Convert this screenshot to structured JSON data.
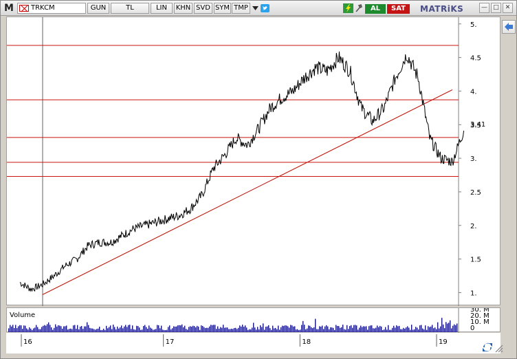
{
  "toolbar": {
    "menu_logo": "M",
    "symbol": "TRKCM",
    "buttons": [
      "GUN",
      "TL",
      "LIN",
      "KHN",
      "SVD",
      "SYM",
      "TMP"
    ],
    "al_label": "AL",
    "sat_label": "SAT",
    "brand": "MATRiKS",
    "icons": [
      "flag-icon",
      "dropdown-arrow-icon",
      "twitter-icon",
      "refresh-icon",
      "settings-icon",
      "minimize-icon",
      "maximize-icon",
      "close-icon"
    ]
  },
  "volume": {
    "label": "Volume",
    "axis_labels": [
      "30. M",
      "20. M",
      "10. M",
      "0"
    ]
  },
  "colors": {
    "price_line": "#000000",
    "support_lines": "#c8140c",
    "trend_line": "#c8140c",
    "volume_bars": "#14147a",
    "al": "#1e8a2e",
    "sat": "#c41414",
    "brand": "#4a4e86"
  },
  "chart_data": {
    "type": "line",
    "title": "",
    "xlabel": "",
    "ylabel": "",
    "x_ticks": [
      "16",
      "17",
      "18",
      "19"
    ],
    "y_ticks": [
      "5.",
      "4.5",
      "4.",
      "3.5",
      "3.",
      "2.5",
      "2.",
      "1.5",
      "1."
    ],
    "ylim": [
      0.8,
      5.1
    ],
    "last_price_label": "3.41",
    "last_price": 3.41,
    "horizontal_levels": [
      4.68,
      3.87,
      3.31,
      2.94,
      2.73
    ],
    "trend_line": {
      "from": {
        "x": "2016-01",
        "y": 0.97
      },
      "to": {
        "x": "2019-01",
        "y": 4.02
      }
    },
    "vertical_marker": "2016-01",
    "series": [
      {
        "points": [
          [
            "2015-11",
            1.15
          ],
          [
            "2015-12",
            1.05
          ],
          [
            "2016-01",
            1.12
          ],
          [
            "2016-02",
            1.25
          ],
          [
            "2016-03",
            1.4
          ],
          [
            "2016-04",
            1.5
          ],
          [
            "2016-05",
            1.7
          ],
          [
            "2016-06",
            1.75
          ],
          [
            "2016-07",
            1.75
          ],
          [
            "2016-08",
            1.85
          ],
          [
            "2016-09",
            1.95
          ],
          [
            "2016-10",
            2.0
          ],
          [
            "2016-11",
            2.05
          ],
          [
            "2016-12",
            2.1
          ],
          [
            "2017-01",
            2.15
          ],
          [
            "2017-02",
            2.25
          ],
          [
            "2017-03",
            2.45
          ],
          [
            "2017-04",
            2.85
          ],
          [
            "2017-05",
            3.05
          ],
          [
            "2017-06",
            3.3
          ],
          [
            "2017-07",
            3.2
          ],
          [
            "2017-08",
            3.45
          ],
          [
            "2017-09",
            3.75
          ],
          [
            "2017-10",
            3.9
          ],
          [
            "2017-11",
            4.0
          ],
          [
            "2017-12",
            4.2
          ],
          [
            "2018-01",
            4.35
          ],
          [
            "2018-02",
            4.3
          ],
          [
            "2018-03",
            4.5
          ],
          [
            "2018-04",
            4.3
          ],
          [
            "2018-05",
            3.75
          ],
          [
            "2018-06",
            3.55
          ],
          [
            "2018-07",
            3.75
          ],
          [
            "2018-08",
            4.2
          ],
          [
            "2018-09",
            4.55
          ],
          [
            "2018-10",
            4.2
          ],
          [
            "2018-11",
            3.3
          ],
          [
            "2018-12",
            3.0
          ],
          [
            "2019-01",
            2.95
          ],
          [
            "2019-02",
            3.41
          ]
        ]
      }
    ]
  }
}
